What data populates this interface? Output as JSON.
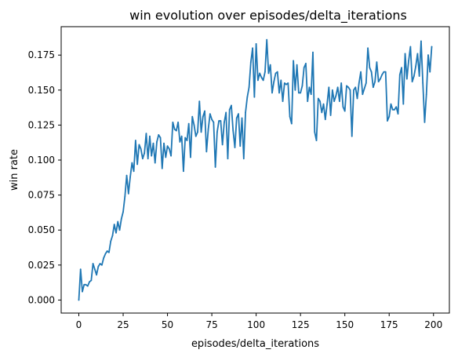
{
  "colors": {
    "line": "#1f77b4",
    "axes": "#000000",
    "background": "#ffffff"
  },
  "chart_data": {
    "type": "line",
    "title": "win evolution over episodes/delta_iterations",
    "xlabel": "episodes/delta_iterations",
    "ylabel": "win rate",
    "xlim": [
      -9.95,
      208.95
    ],
    "ylim": [
      -0.0093,
      0.1953
    ],
    "grid": false,
    "legend": "none",
    "xticks": [
      0,
      25,
      50,
      75,
      100,
      125,
      150,
      175,
      200
    ],
    "xtick_labels": [
      "0",
      "25",
      "50",
      "75",
      "100",
      "125",
      "150",
      "175",
      "200"
    ],
    "yticks": [
      0.0,
      0.025,
      0.05,
      0.075,
      0.1,
      0.125,
      0.15,
      0.175
    ],
    "ytick_labels": [
      "0.000",
      "0.025",
      "0.050",
      "0.075",
      "0.100",
      "0.125",
      "0.150",
      "0.175"
    ],
    "series": [
      {
        "color": "#1f77b4",
        "values": [
          0.0,
          0.022,
          0.006,
          0.011,
          0.011,
          0.01,
          0.013,
          0.014,
          0.026,
          0.022,
          0.018,
          0.024,
          0.026,
          0.025,
          0.03,
          0.033,
          0.035,
          0.034,
          0.042,
          0.046,
          0.054,
          0.048,
          0.056,
          0.05,
          0.058,
          0.063,
          0.074,
          0.089,
          0.076,
          0.088,
          0.098,
          0.092,
          0.114,
          0.097,
          0.111,
          0.108,
          0.101,
          0.105,
          0.119,
          0.101,
          0.117,
          0.103,
          0.112,
          0.098,
          0.113,
          0.118,
          0.116,
          0.094,
          0.112,
          0.102,
          0.11,
          0.108,
          0.103,
          0.127,
          0.122,
          0.121,
          0.127,
          0.113,
          0.117,
          0.092,
          0.116,
          0.114,
          0.126,
          0.102,
          0.131,
          0.125,
          0.117,
          0.12,
          0.142,
          0.12,
          0.131,
          0.135,
          0.106,
          0.122,
          0.133,
          0.129,
          0.127,
          0.095,
          0.12,
          0.128,
          0.128,
          0.111,
          0.127,
          0.134,
          0.101,
          0.136,
          0.139,
          0.121,
          0.109,
          0.13,
          0.133,
          0.11,
          0.13,
          0.101,
          0.134,
          0.145,
          0.152,
          0.17,
          0.18,
          0.145,
          0.183,
          0.157,
          0.162,
          0.159,
          0.157,
          0.163,
          0.186,
          0.162,
          0.168,
          0.148,
          0.156,
          0.162,
          0.163,
          0.148,
          0.157,
          0.142,
          0.155,
          0.154,
          0.155,
          0.131,
          0.126,
          0.171,
          0.15,
          0.168,
          0.148,
          0.148,
          0.153,
          0.166,
          0.169,
          0.142,
          0.152,
          0.147,
          0.177,
          0.12,
          0.114,
          0.144,
          0.142,
          0.134,
          0.14,
          0.129,
          0.14,
          0.152,
          0.132,
          0.15,
          0.142,
          0.146,
          0.152,
          0.142,
          0.155,
          0.138,
          0.135,
          0.153,
          0.152,
          0.15,
          0.117,
          0.15,
          0.152,
          0.144,
          0.155,
          0.163,
          0.147,
          0.151,
          0.155,
          0.18,
          0.166,
          0.163,
          0.152,
          0.156,
          0.17,
          0.156,
          0.158,
          0.161,
          0.163,
          0.163,
          0.128,
          0.131,
          0.14,
          0.136,
          0.136,
          0.138,
          0.133,
          0.161,
          0.166,
          0.14,
          0.176,
          0.158,
          0.171,
          0.181,
          0.156,
          0.16,
          0.167,
          0.176,
          0.16,
          0.185,
          0.155,
          0.127,
          0.147,
          0.175,
          0.163,
          0.181
        ]
      }
    ]
  }
}
